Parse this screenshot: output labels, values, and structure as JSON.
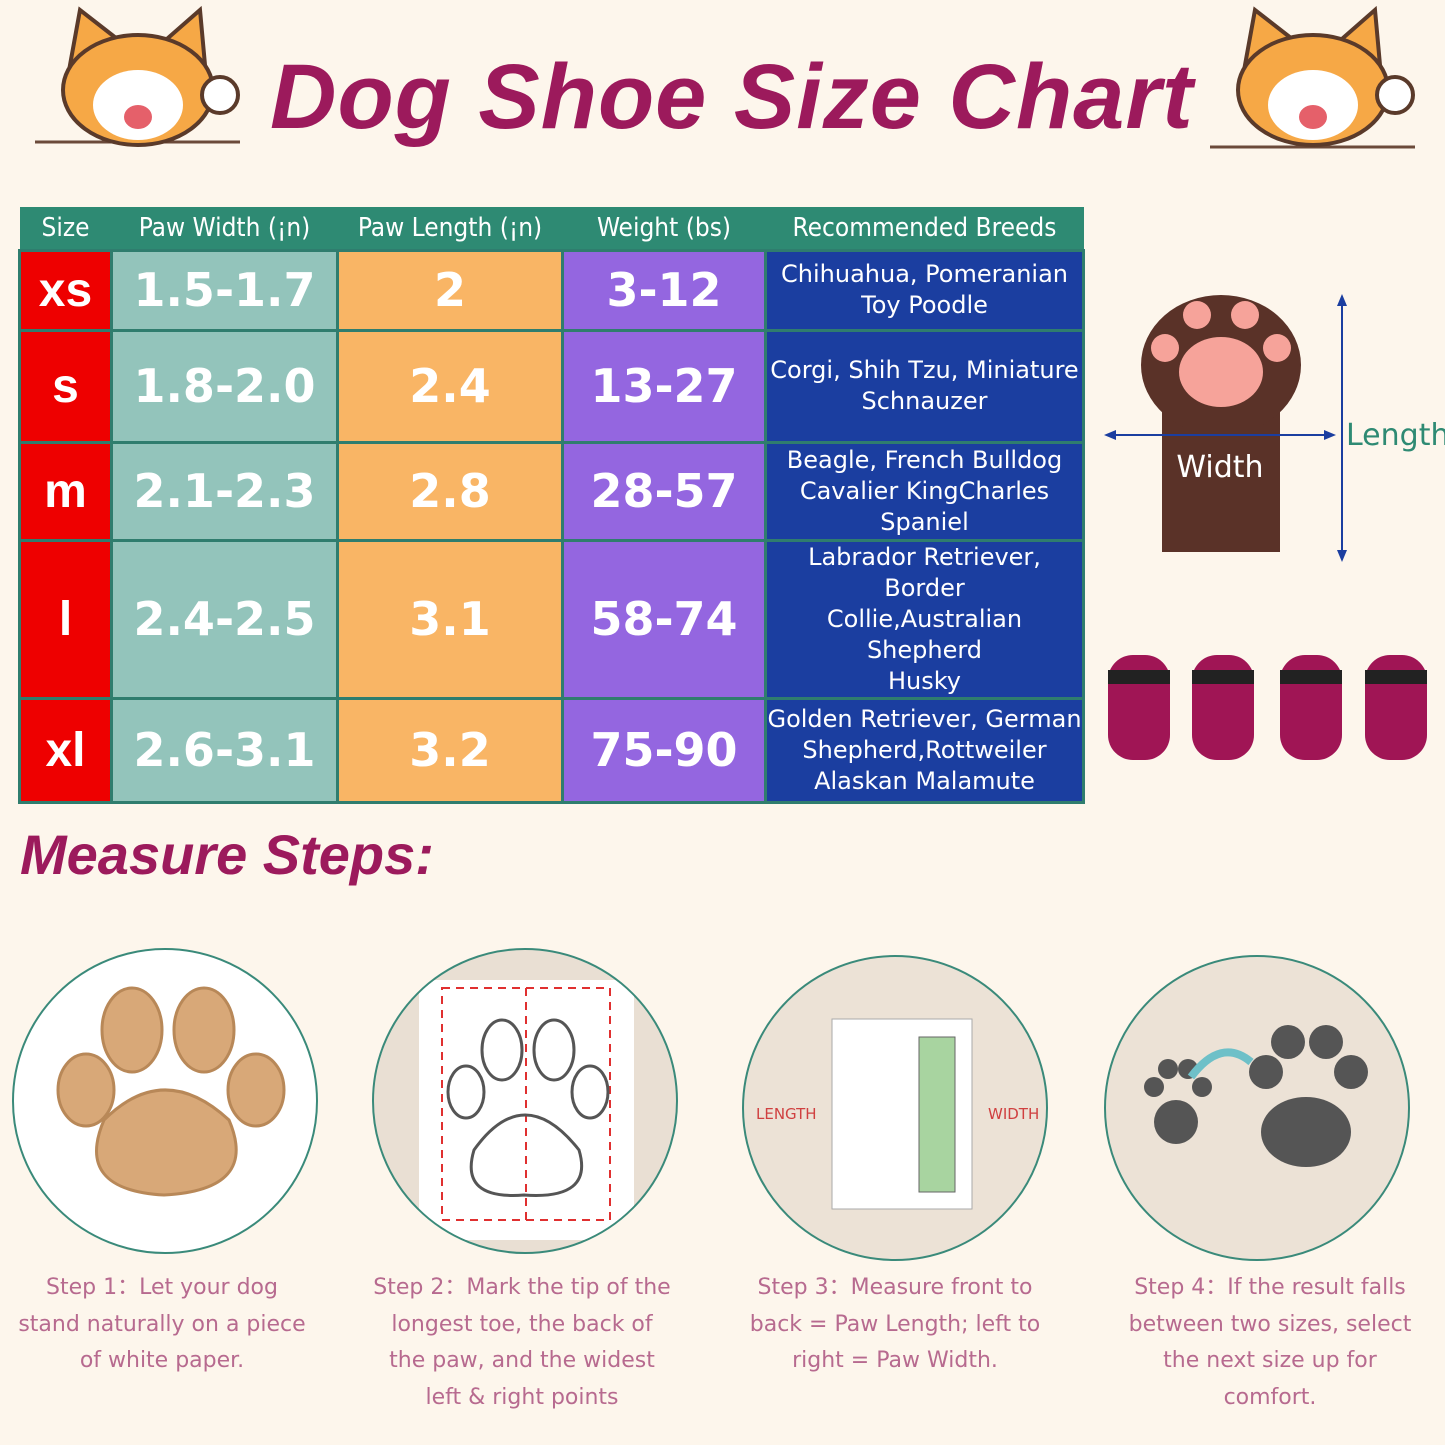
{
  "title": "Dog Shoe Size Chart",
  "table": {
    "headers": [
      "Size",
      "Paw Width (¡n)",
      "Paw Length (¡n)",
      "Weight (bs)",
      "Recommended Breeds"
    ],
    "rows": [
      {
        "size": "xs",
        "width": "1.5-1.7",
        "length": "2",
        "weight": "3-12",
        "breeds": [
          "Chihuahua, Pomeranian",
          "Toy Poodle"
        ]
      },
      {
        "size": "s",
        "width": "1.8-2.0",
        "length": "2.4",
        "weight": "13-27",
        "breeds": [
          "Corgi, Shih Tzu, Miniature",
          "Schnauzer"
        ]
      },
      {
        "size": "m",
        "width": "2.1-2.3",
        "length": "2.8",
        "weight": "28-57",
        "breeds": [
          "Beagle, French Bulldog",
          "Cavalier KingCharles",
          "Spaniel"
        ]
      },
      {
        "size": "l",
        "width": "2.4-2.5",
        "length": "3.1",
        "weight": "58-74",
        "breeds": [
          "Labrador Retriever, Border",
          "Collie,Australian Shepherd",
          "Husky"
        ]
      },
      {
        "size": "xl",
        "width": "2.6-3.1",
        "length": "3.2",
        "weight": "75-90",
        "breeds": [
          "Golden Retriever, German",
          "Shepherd,Rottweiler",
          "Alaskan Malamute"
        ]
      }
    ]
  },
  "diagram": {
    "width_label": "Width",
    "length_label": "Length"
  },
  "steps_title": "Measure Steps:",
  "step3_labels": {
    "length": "LENGTH",
    "width": "WIDTH"
  },
  "steps": [
    "Step 1：Let your dog stand naturally on a piece of white paper.",
    "Step 2：Mark the tip of the longest toe, the back of the paw, and the widest left & right points",
    "Step 3：Measure front to back = Paw Length; left to right = Paw Width.",
    "Step 4：If the result falls between two sizes, select the next size up for comfort."
  ]
}
